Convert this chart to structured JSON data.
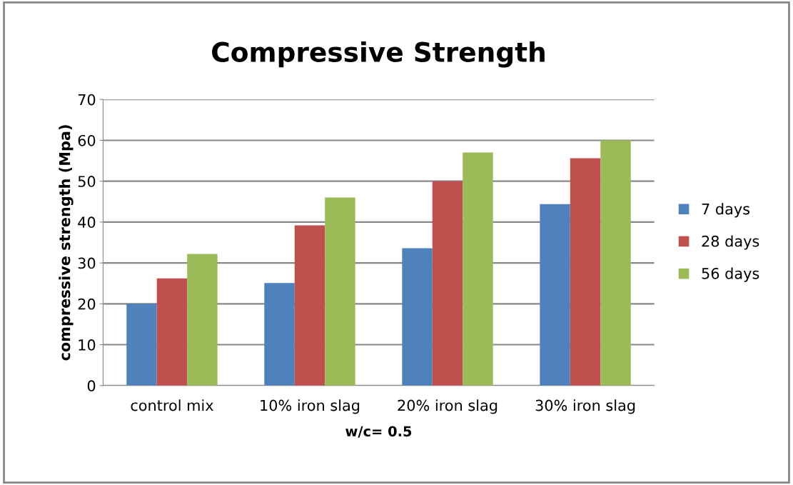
{
  "chart_data": {
    "type": "bar",
    "title": "Compressive Strength",
    "xlabel": "w/c= 0.5",
    "ylabel": "compressive strength (Mpa)",
    "categories": [
      "control mix",
      "10% iron slag",
      "20% iron slag",
      "30% iron slag"
    ],
    "series": [
      {
        "name": "7 days",
        "color": "#4f81bd",
        "values": [
          20,
          25.1,
          33.6,
          44.4
        ]
      },
      {
        "name": "28 days",
        "color": "#c0504d",
        "values": [
          26.2,
          39.2,
          50,
          55.6
        ]
      },
      {
        "name": "56 days",
        "color": "#9bbb59",
        "values": [
          32.2,
          46,
          57,
          60
        ]
      }
    ],
    "ylim": [
      0,
      70
    ],
    "yticks": [
      0,
      10,
      20,
      30,
      40,
      50,
      60,
      70
    ],
    "grid": "y",
    "legend": "right"
  }
}
